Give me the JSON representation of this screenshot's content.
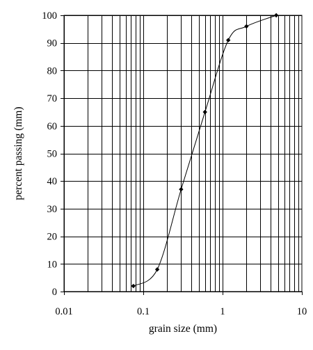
{
  "chart_data": {
    "type": "line",
    "title": "",
    "xlabel": "grain size (mm)",
    "ylabel": "percent passing (mm)",
    "x_scale": "log",
    "xlim": [
      0.01,
      10
    ],
    "ylim": [
      0,
      100
    ],
    "x_ticks": [
      0.01,
      0.1,
      1,
      10
    ],
    "x_tick_labels": [
      "0.01",
      "0.1",
      "1",
      "10"
    ],
    "y_ticks": [
      0,
      10,
      20,
      30,
      40,
      50,
      60,
      70,
      80,
      90,
      100
    ],
    "y_tick_labels": [
      "0",
      "10",
      "20",
      "30",
      "40",
      "50",
      "60",
      "70",
      "80",
      "90",
      "100"
    ],
    "grid": true,
    "line_color": "#000000",
    "marker": "diamond",
    "series": [
      {
        "x": [
          0.075,
          0.15,
          0.3,
          0.6,
          1.18,
          2.0,
          4.75
        ],
        "y": [
          2,
          8,
          37,
          65,
          91,
          96,
          100
        ]
      }
    ]
  }
}
